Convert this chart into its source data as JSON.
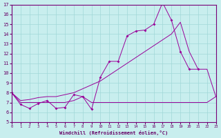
{
  "xlabel": "Windchill (Refroidissement éolien,°C)",
  "xlim": [
    0,
    23
  ],
  "ylim": [
    5,
    17
  ],
  "xticks": [
    0,
    1,
    2,
    3,
    4,
    5,
    6,
    7,
    8,
    9,
    10,
    11,
    12,
    13,
    14,
    15,
    16,
    17,
    18,
    19,
    20,
    21,
    22,
    23
  ],
  "yticks": [
    5,
    6,
    7,
    8,
    9,
    10,
    11,
    12,
    13,
    14,
    15,
    16,
    17
  ],
  "bg_color": "#c8eeee",
  "line_color": "#990099",
  "grid_color": "#a0d8d8",
  "line1_x": [
    0,
    1,
    2,
    3,
    4,
    5,
    6,
    7,
    8,
    9,
    10,
    11,
    12,
    13,
    14,
    15,
    16,
    17,
    18,
    19,
    20,
    21
  ],
  "line1_y": [
    8.0,
    6.8,
    6.4,
    6.9,
    7.2,
    6.4,
    6.5,
    7.8,
    7.6,
    6.3,
    9.6,
    11.2,
    11.2,
    13.8,
    14.3,
    14.4,
    15.0,
    17.2,
    15.4,
    12.2,
    10.4,
    10.4
  ],
  "line2_x": [
    0,
    1,
    2,
    3,
    4,
    5,
    6,
    7,
    8,
    9,
    10,
    11,
    12,
    13,
    14,
    15,
    16,
    17,
    18,
    19,
    20,
    21,
    22,
    23
  ],
  "line2_y": [
    8.0,
    7.2,
    7.3,
    7.5,
    7.6,
    7.6,
    7.8,
    8.0,
    8.4,
    8.8,
    9.2,
    9.8,
    10.4,
    11.0,
    11.6,
    12.2,
    12.8,
    13.4,
    14.0,
    15.2,
    12.2,
    10.4,
    10.4,
    7.6
  ],
  "line3_x": [
    0,
    1,
    2,
    3,
    4,
    5,
    6,
    7,
    8,
    9,
    10,
    11,
    12,
    13,
    14,
    15,
    16,
    17,
    18,
    19,
    20,
    21,
    22,
    23
  ],
  "line3_y": [
    8.0,
    7.0,
    7.0,
    7.0,
    7.0,
    7.0,
    7.0,
    7.2,
    7.6,
    7.0,
    7.0,
    7.0,
    7.0,
    7.0,
    7.0,
    7.0,
    7.0,
    7.0,
    7.0,
    7.0,
    7.0,
    7.0,
    7.0,
    7.6
  ]
}
